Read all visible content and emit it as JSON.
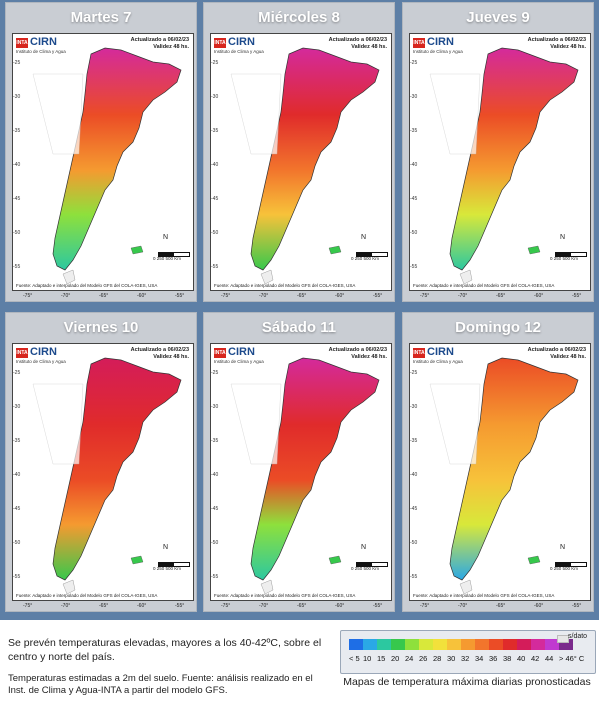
{
  "panels": [
    {
      "day": "Martes 7"
    },
    {
      "day": "Miércoles 8"
    },
    {
      "day": "Jueves 9"
    },
    {
      "day": "Viernes 10"
    },
    {
      "day": "Sábado 11"
    },
    {
      "day": "Domingo 12"
    }
  ],
  "map_labels": {
    "inta": "INTA",
    "cirn": "CIRN",
    "institute": "Instituto de Clima y Agua",
    "updated_line1": "Actualizado a 06/02/23",
    "updated_line2": "Validez 48 hs.",
    "source": "Fuente: Adaptado e interpolado del Modelo GFS del COLA-IGES, USA",
    "latitudes": [
      "-25",
      "-30",
      "-35",
      "-40",
      "-45",
      "-50",
      "-55"
    ],
    "longitudes": [
      "-75°",
      "-70°",
      "-65°",
      "-60°",
      "-55°"
    ],
    "north": "N",
    "scale": "0   250   500 Km"
  },
  "legend": {
    "labels": [
      "< 5",
      "10",
      "15",
      "20",
      "24",
      "26",
      "28",
      "30",
      "32",
      "34",
      "36",
      "38",
      "40",
      "42",
      "44",
      "> 46° C"
    ],
    "no_data": "s/dato",
    "colors": [
      "#1e6ee6",
      "#2aa8e6",
      "#2cc8a0",
      "#37c84c",
      "#8ee03c",
      "#d8e83a",
      "#f2e13b",
      "#f7c23a",
      "#f59a30",
      "#f2752c",
      "#eb4c26",
      "#e02b2b",
      "#d41c5a",
      "#d42a9c",
      "#c03ad0",
      "#7a2a8c"
    ]
  },
  "caption": {
    "main": "Se prevén temperaturas elevadas, mayores a los 40-42ºC, sobre el centro y norte del país.",
    "note": "Temperaturas estimadas a 2m del suelo. Fuente: análisis realizado en el Inst. de Clima y Agua-INTA a partir del modelo GFS.",
    "title": "Mapas de temperatura máxima diarias pronosticadas"
  }
}
